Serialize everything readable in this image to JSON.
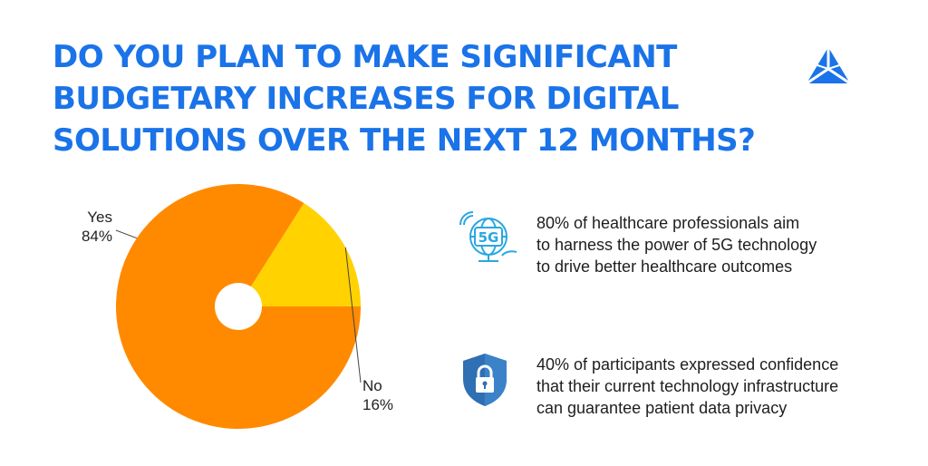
{
  "header": {
    "title_lines": [
      "DO YOU PLAN TO MAKE SIGNIFICANT",
      "BUDGETARY INCREASES FOR DIGITAL",
      "SOLUTIONS OVER THE NEXT 12 MONTHS?"
    ],
    "title_color": "#1a73e8",
    "logo_icon": "triangle-logo-icon"
  },
  "chart_data": {
    "type": "pie",
    "title": "",
    "donut_hole": true,
    "slices": [
      {
        "label": "Yes",
        "value": 84,
        "value_label": "84%",
        "color": "#ff8a00"
      },
      {
        "label": "No",
        "value": 16,
        "value_label": "16%",
        "color": "#ffd200"
      }
    ],
    "start_angle_deg": 0,
    "direction": "clockwise",
    "legend": "none"
  },
  "stats": [
    {
      "icon": "5g-globe-icon",
      "lines": [
        "80% of healthcare professionals aim",
        "to harness the power of 5G technology",
        "to drive better healthcare outcomes"
      ]
    },
    {
      "icon": "shield-lock-icon",
      "lines": [
        "40% of participants expressed confidence",
        "that their current technology infrastructure",
        "can guarantee patient data privacy"
      ]
    }
  ],
  "icon_badge_text": "5G",
  "colors": {
    "accent": "#1a73e8",
    "icon_blue": "#2aa7e0",
    "shield": "#2f6fb3"
  }
}
